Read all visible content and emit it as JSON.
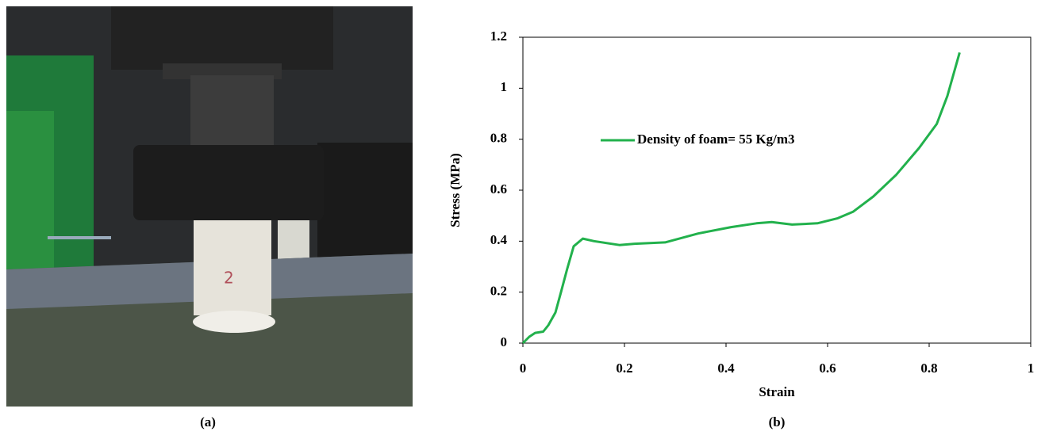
{
  "photo": {
    "caption": "(a)",
    "sample_label": "2"
  },
  "chart_data": {
    "type": "line",
    "caption": "(b)",
    "x_label": "Strain",
    "y_label": "Stress (MPa)",
    "x": [
      0,
      0.0125,
      0.024,
      0.04,
      0.05,
      0.064,
      0.075,
      0.087,
      0.1,
      0.118,
      0.14,
      0.19,
      0.22,
      0.28,
      0.345,
      0.41,
      0.46,
      0.49,
      0.53,
      0.58,
      0.62,
      0.65,
      0.69,
      0.735,
      0.78,
      0.815,
      0.836,
      0.86
    ],
    "series": [
      {
        "name": "Density of foam= 55 Kg/m3",
        "color": "#22b14c",
        "values": [
          0,
          0.025,
          0.04,
          0.045,
          0.07,
          0.12,
          0.2,
          0.29,
          0.38,
          0.41,
          0.4,
          0.385,
          0.39,
          0.395,
          0.43,
          0.455,
          0.47,
          0.475,
          0.465,
          0.47,
          0.49,
          0.515,
          0.575,
          0.66,
          0.765,
          0.86,
          0.97,
          1.14
        ]
      }
    ],
    "xlim": [
      0,
      1
    ],
    "ylim": [
      0,
      1.2
    ],
    "xticks": [
      0,
      0.2,
      0.4,
      0.6,
      0.8,
      1
    ],
    "yticks": [
      0,
      0.2,
      0.4,
      0.6,
      0.8,
      1,
      1.2
    ],
    "legend": "upper left",
    "grid": false
  }
}
